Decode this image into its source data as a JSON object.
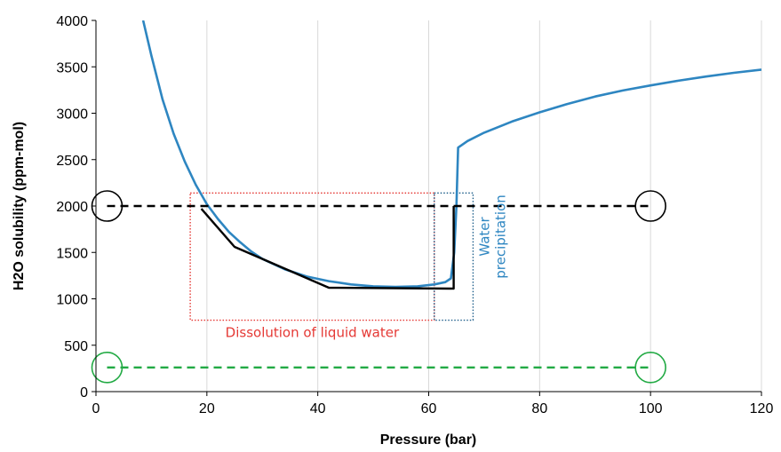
{
  "chart_data": {
    "type": "line",
    "title": "",
    "xlabel": "Pressure (bar)",
    "ylabel": "H2O solubility (ppm-mol)",
    "xlim": [
      0,
      120
    ],
    "ylim": [
      0,
      4000
    ],
    "xticks": [
      0,
      20,
      40,
      60,
      80,
      100,
      120
    ],
    "yticks": [
      0,
      500,
      1000,
      1500,
      2000,
      2500,
      3000,
      3500,
      4000
    ],
    "grid": {
      "vertical": true,
      "horizontal": false
    },
    "series": [
      {
        "color": "#2e86c1",
        "style": "solid",
        "points": [
          [
            8.5,
            4000
          ],
          [
            10,
            3620
          ],
          [
            12,
            3150
          ],
          [
            14,
            2780
          ],
          [
            16,
            2480
          ],
          [
            18,
            2230
          ],
          [
            20,
            2020
          ],
          [
            22,
            1860
          ],
          [
            24,
            1720
          ],
          [
            26,
            1610
          ],
          [
            28,
            1510
          ],
          [
            30,
            1430
          ],
          [
            34,
            1320
          ],
          [
            38,
            1240
          ],
          [
            42,
            1190
          ],
          [
            46,
            1155
          ],
          [
            50,
            1135
          ],
          [
            54,
            1128
          ],
          [
            58,
            1135
          ],
          [
            61,
            1155
          ],
          [
            63,
            1180
          ],
          [
            64,
            1220
          ],
          [
            64.6,
            1500
          ],
          [
            65,
            2000
          ],
          [
            65.3,
            2630
          ],
          [
            67,
            2700
          ],
          [
            70,
            2790
          ],
          [
            75,
            2910
          ],
          [
            80,
            3010
          ],
          [
            85,
            3100
          ],
          [
            90,
            3180
          ],
          [
            95,
            3245
          ],
          [
            100,
            3300
          ],
          [
            105,
            3350
          ],
          [
            110,
            3395
          ],
          [
            115,
            3435
          ],
          [
            120,
            3470
          ]
        ]
      },
      {
        "color": "#000000",
        "style": "solid",
        "points": [
          [
            19,
            1970
          ],
          [
            25,
            1560
          ],
          [
            42,
            1120
          ],
          [
            64.5,
            1110
          ],
          [
            64.5,
            2000
          ]
        ]
      },
      {
        "color": "#000000",
        "style": "dashed",
        "points": [
          [
            2,
            2000
          ],
          [
            100,
            2000
          ]
        ]
      },
      {
        "color": "#22aa44",
        "style": "dashed",
        "points": [
          [
            2,
            260
          ],
          [
            100,
            260
          ]
        ]
      }
    ],
    "markers": [
      {
        "x": 2,
        "y": 2000,
        "color": "#000000"
      },
      {
        "x": 100,
        "y": 2000,
        "color": "#000000"
      },
      {
        "x": 2,
        "y": 260,
        "color": "#22aa44"
      },
      {
        "x": 100,
        "y": 260,
        "color": "#22aa44"
      }
    ],
    "regions": [
      {
        "x": [
          17,
          61
        ],
        "y": [
          770,
          2140
        ],
        "color": "#e53935",
        "label": "Dissolution of liquid water"
      },
      {
        "x": [
          61,
          68
        ],
        "y": [
          770,
          2140
        ],
        "color": "#1f5f8b",
        "label": ""
      }
    ],
    "annotations": [
      {
        "lines": [
          "Water",
          "precipitation"
        ],
        "color": "#2e86c1"
      }
    ]
  }
}
